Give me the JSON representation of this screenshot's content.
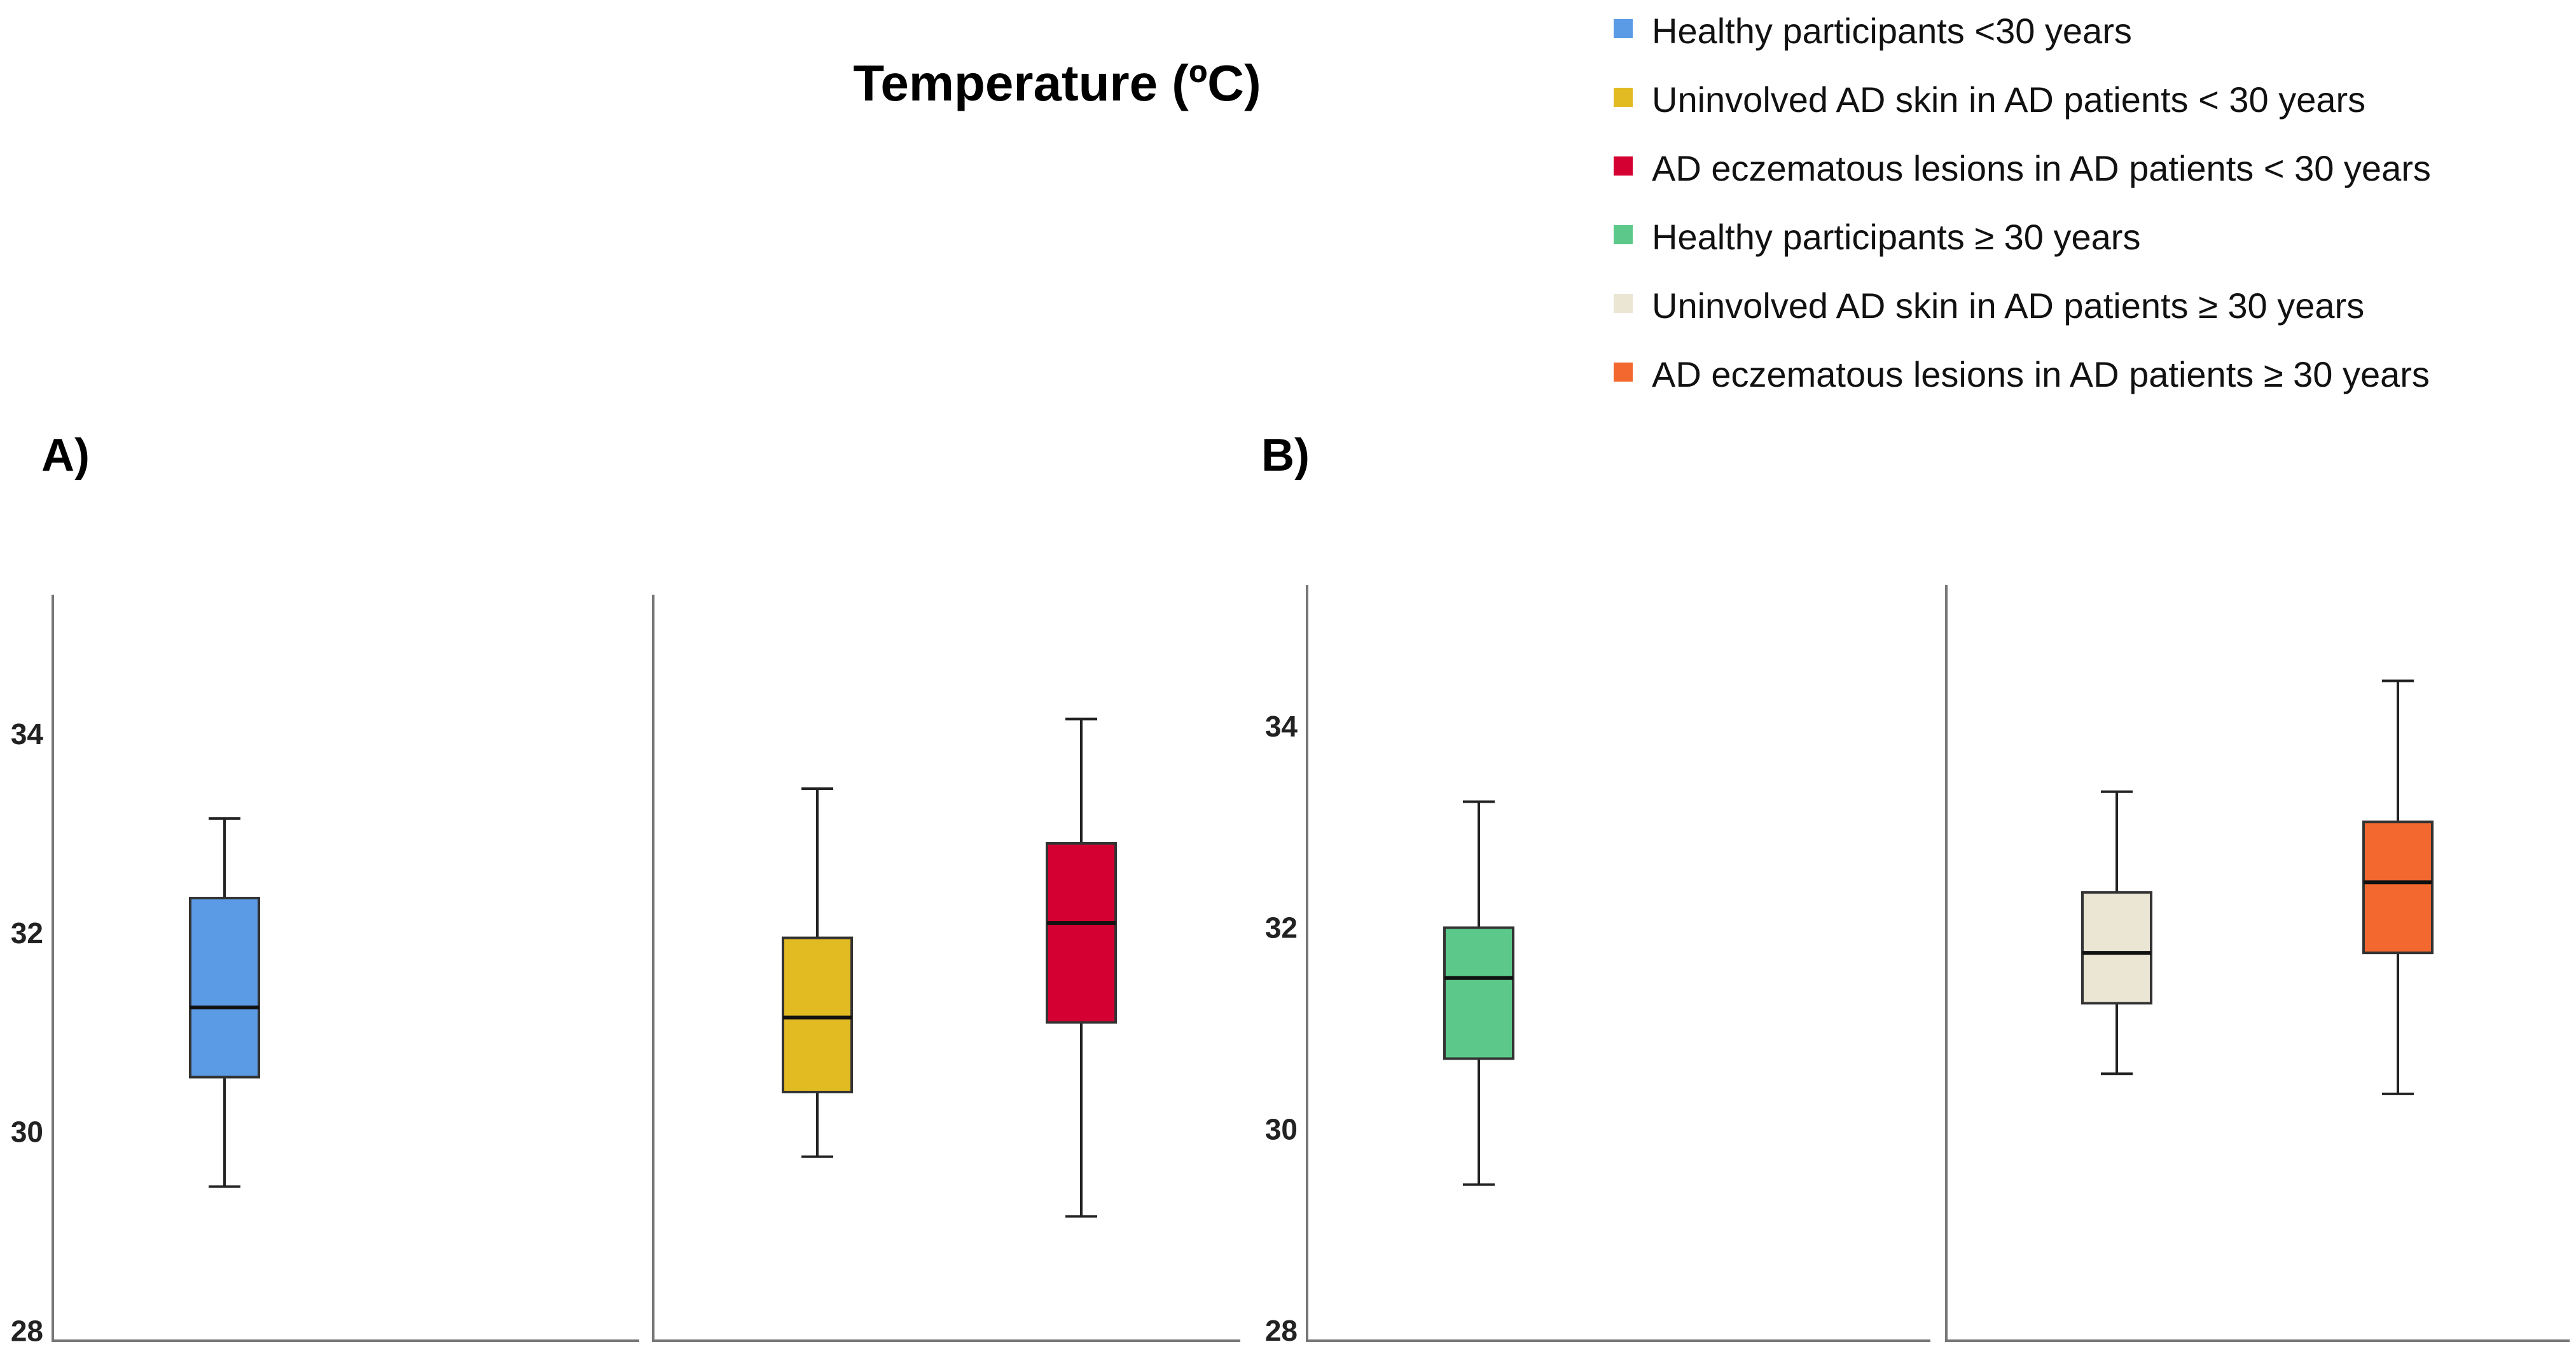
{
  "title": "Temperature (ºC)",
  "panel_labels": [
    "A)",
    "B)"
  ],
  "legend": [
    {
      "label": "Healthy participants <30 years",
      "color": "#5b9be6"
    },
    {
      "label": "Uninvolved AD skin in AD patients < 30 years",
      "color": "#e2bb22"
    },
    {
      "label": "AD eczematous lesions in AD patients < 30 years",
      "color": "#d50032"
    },
    {
      "label": "Healthy participants  ≥ 30 years",
      "color": "#5cc98a"
    },
    {
      "label": "Uninvolved AD skin in AD patients  ≥ 30 years",
      "color": "#ebe5d4"
    },
    {
      "label": "AD eczematous lesions in AD patients  ≥ 30 years",
      "color": "#f2682e"
    }
  ],
  "chart_data": {
    "type": "boxplot",
    "title": "Temperature (ºC)",
    "ylabel": "",
    "ylim": [
      27.9,
      35.4
    ],
    "yticks": [
      28,
      30,
      32,
      34
    ],
    "panels": [
      {
        "label": "A)",
        "groups": [
          {
            "name": "Healthy participants <30 years",
            "color": "#5b9be6",
            "min": 29.45,
            "q1": 30.55,
            "median": 31.25,
            "q3": 32.35,
            "max": 33.15
          },
          {
            "name": "Uninvolved AD skin in AD patients < 30 years",
            "color": "#e2bb22",
            "min": 29.75,
            "q1": 30.4,
            "median": 31.15,
            "q3": 31.95,
            "max": 33.45
          },
          {
            "name": "AD eczematous lesions in AD patients < 30 years",
            "color": "#d50032",
            "min": 29.15,
            "q1": 31.1,
            "median": 32.1,
            "q3": 32.9,
            "max": 34.15
          }
        ]
      },
      {
        "label": "B)",
        "groups": [
          {
            "name": "Healthy participants  ≥ 30 years",
            "color": "#5cc98a",
            "min": 29.45,
            "q1": 30.7,
            "median": 31.5,
            "q3": 32.0,
            "max": 33.25
          },
          {
            "name": "Uninvolved AD skin in AD patients  ≥ 30 years",
            "color": "#ebe5d4",
            "min": 30.55,
            "q1": 31.25,
            "median": 31.75,
            "q3": 32.35,
            "max": 33.35
          },
          {
            "name": "AD eczematous lesions in AD patients  ≥ 30 years",
            "color": "#f2682e",
            "min": 30.35,
            "q1": 31.75,
            "median": 32.45,
            "q3": 33.05,
            "max": 34.45
          }
        ]
      }
    ]
  }
}
